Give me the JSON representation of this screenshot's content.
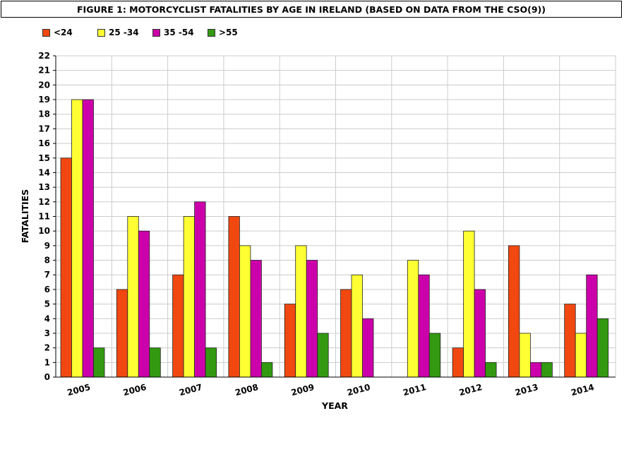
{
  "chart_data": {
    "type": "bar",
    "title": "FIGURE 1: MOTORCYCLIST FATALITIES BY AGE IN IRELAND (BASED ON DATA FROM THE CSO(9))",
    "xlabel": "YEAR",
    "ylabel": "FATALITIES",
    "ylim": [
      0,
      22
    ],
    "grid": true,
    "legend_position": "top-left",
    "categories": [
      "2005",
      "2006",
      "2007",
      "2008",
      "2009",
      "2010",
      "2011",
      "2012",
      "2013",
      "2014"
    ],
    "series": [
      {
        "name": "<24",
        "color": "#f04810",
        "values": [
          15,
          6,
          7,
          11,
          5,
          6,
          0,
          2,
          9,
          5
        ]
      },
      {
        "name": "25 -34",
        "color": "#ffff33",
        "values": [
          19,
          11,
          11,
          9,
          9,
          7,
          8,
          10,
          3,
          3
        ]
      },
      {
        "name": "35 -54",
        "color": "#cc00aa",
        "values": [
          19,
          10,
          12,
          8,
          8,
          4,
          7,
          6,
          1,
          7
        ]
      },
      {
        "name": ">55",
        "color": "#339911",
        "values": [
          2,
          2,
          2,
          1,
          3,
          0,
          3,
          1,
          1,
          4
        ]
      }
    ]
  }
}
